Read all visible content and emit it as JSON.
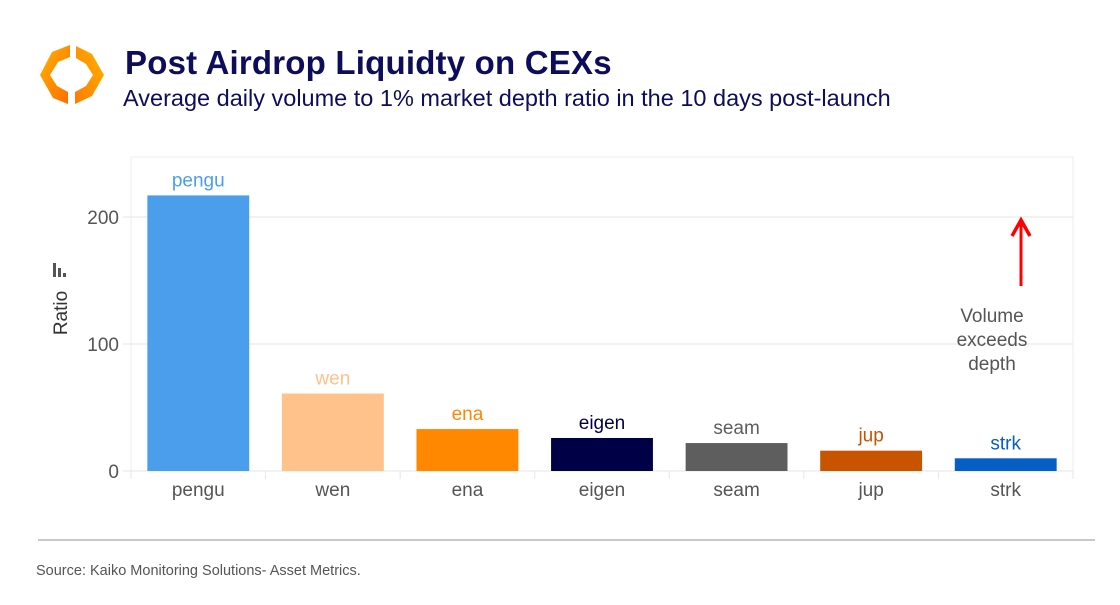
{
  "header": {
    "logo": "kaiko-logo-icon",
    "title": "Post Airdrop Liquidty on CEXs",
    "subtitle": "Average daily volume to 1% market depth ratio in the 10 days post-launch"
  },
  "footer": {
    "source": "Source: Kaiko Monitoring Solutions- Asset Metrics."
  },
  "chart_data": {
    "type": "bar",
    "title": "Post Airdrop Liquidty on CEXs",
    "subtitle": "Average daily volume to 1% market depth ratio in the 10 days post-launch",
    "xlabel": "",
    "ylabel": "Ratio",
    "ylabel_icon": "bar-chart-icon",
    "ylim": [
      0,
      250
    ],
    "yticks": [
      0,
      100,
      200
    ],
    "grid": true,
    "legend": "none",
    "categories": [
      "pengu",
      "wen",
      "ena",
      "eigen",
      "seam",
      "jup",
      "strk"
    ],
    "values": [
      217,
      61,
      33,
      26,
      22,
      16,
      10
    ],
    "colors": [
      "#4a9eeb",
      "#ffc28a",
      "#ff8800",
      "#000047",
      "#5e5e5e",
      "#c85400",
      "#065fc4"
    ],
    "data_labels": [
      "pengu",
      "wen",
      "ena",
      "eigen",
      "seam",
      "jup",
      "strk"
    ],
    "annotation": {
      "text_lines": [
        "Volume",
        "exceeds",
        "depth"
      ],
      "arrow_color": "#ff0000",
      "arrow_direction": "up"
    }
  }
}
